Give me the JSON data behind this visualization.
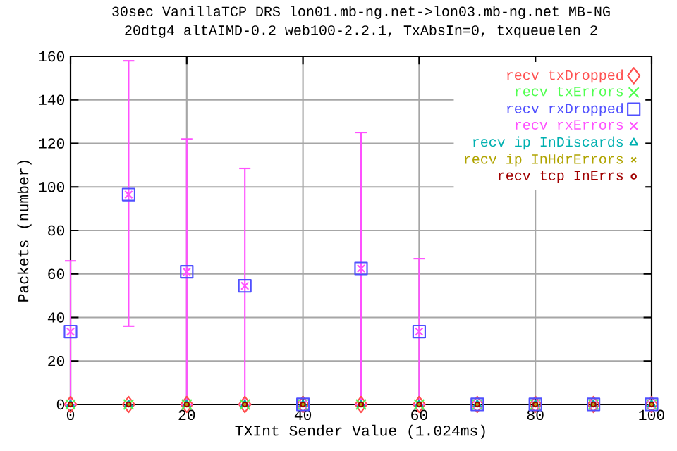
{
  "chart_data": {
    "type": "scatter",
    "title": "30sec VanillaTCP DRS lon01.mb-ng.net->lon03.mb-ng.net MB-NG",
    "subtitle": "20dtg4 altAIMD-0.2 web100-2.2.1, TxAbsIn=0, txqueuelen 2",
    "xlabel": "TXInt Sender Value (1.024ms)",
    "ylabel": "Packets (number)",
    "x": [
      0,
      10,
      20,
      30,
      40,
      50,
      60,
      70,
      80,
      90,
      100
    ],
    "series": [
      {
        "name": "recv txDropped",
        "color": "#ff5050",
        "marker": "diamond",
        "values": [
          0,
          0,
          0,
          0,
          0,
          0,
          0,
          0,
          0,
          0,
          0
        ]
      },
      {
        "name": "recv txErrors",
        "color": "#50ff50",
        "marker": "cross",
        "values": [
          0,
          0,
          0,
          0,
          0,
          0,
          0,
          0,
          0,
          0,
          0
        ]
      },
      {
        "name": "recv rxDropped",
        "color": "#5050ff",
        "marker": "square",
        "values": [
          33.5,
          96.5,
          61,
          54.5,
          0,
          62.5,
          33.5,
          0,
          0,
          0,
          0
        ]
      },
      {
        "name": "recv rxErrors",
        "color": "#ff50ff",
        "marker": "cross",
        "values": [
          33.5,
          96.5,
          61,
          54.5,
          0,
          62.5,
          33.5,
          0,
          0,
          0,
          0
        ],
        "errors": [
          [
            0,
            66
          ],
          [
            36,
            158
          ],
          [
            0,
            122
          ],
          [
            0,
            108.5
          ],
          null,
          [
            0,
            125
          ],
          [
            0,
            67
          ],
          null,
          null,
          null,
          null
        ]
      },
      {
        "name": "recv ip InDiscards",
        "color": "#00b0b0",
        "marker": "triangle",
        "values": [
          0,
          0,
          0,
          0,
          0,
          0,
          0,
          0,
          0,
          0,
          0
        ]
      },
      {
        "name": "recv ip InHdrErrors",
        "color": "#b0a400",
        "marker": "cross",
        "values": [
          0,
          0,
          0,
          0,
          0,
          0,
          0,
          0,
          0,
          0,
          0
        ]
      },
      {
        "name": "recv tcp InErrs",
        "color": "#a00000",
        "marker": "circle",
        "values": [
          0,
          0,
          0,
          0,
          0,
          0,
          0,
          0,
          0,
          0,
          0
        ]
      }
    ],
    "xlim": [
      0,
      100
    ],
    "xticks": [
      0,
      20,
      40,
      60,
      80,
      100
    ],
    "ylim": [
      0,
      160
    ],
    "yticks": [
      0,
      20,
      40,
      60,
      80,
      100,
      120,
      140,
      160
    ],
    "grid": true,
    "legend": "top right"
  }
}
